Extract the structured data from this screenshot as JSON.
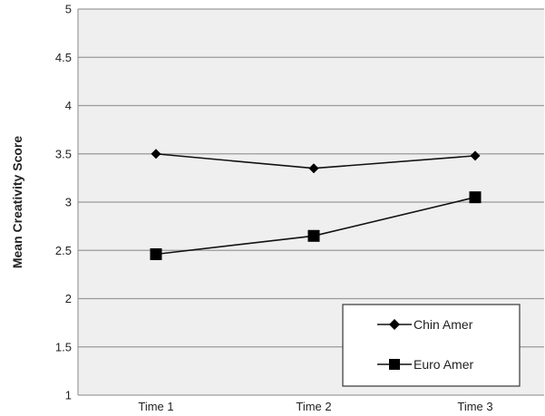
{
  "chart_data": {
    "type": "line",
    "title": "",
    "xlabel": "",
    "ylabel": "Mean Creativity Score",
    "categories": [
      "Time 1",
      "Time 2",
      "Time 3"
    ],
    "ylim": [
      1,
      5
    ],
    "yticks": [
      "1",
      "1.5",
      "2",
      "2.5",
      "3",
      "3.5",
      "4",
      "4.5",
      "5"
    ],
    "grid": true,
    "legend_position": "bottom-right",
    "colors": {
      "plot_background": "#efefef",
      "gridline": "#9a9a9a",
      "series_line": "#111111",
      "marker": "#000000"
    },
    "series": [
      {
        "name": "Chin Amer",
        "marker": "diamond",
        "values": [
          3.5,
          3.35,
          3.48
        ]
      },
      {
        "name": "Euro Amer",
        "marker": "square",
        "values": [
          2.46,
          2.65,
          3.05
        ]
      }
    ]
  }
}
